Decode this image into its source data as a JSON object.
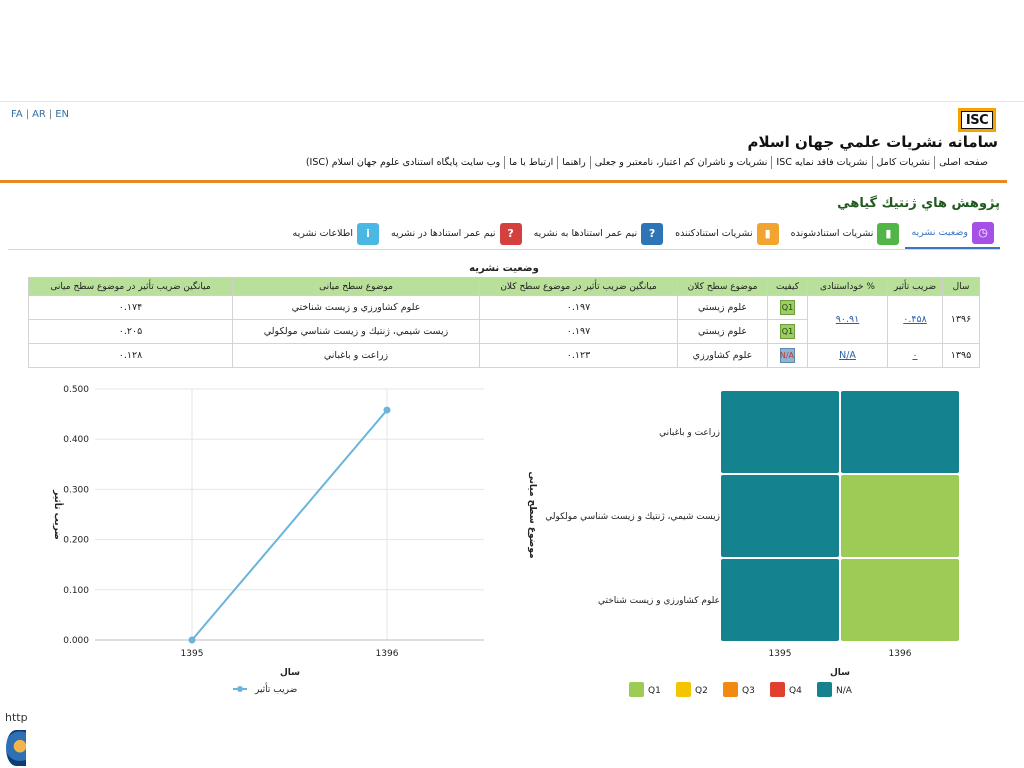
{
  "lang": [
    "FA",
    "AR",
    "EN"
  ],
  "logo": "ISC",
  "site_title": "سامانه نشريات علمي جهان اسلام",
  "nav": [
    "صفحه اصلی",
    "نشريات كامل",
    "نشريات فاقد نمايه ISC",
    "نشريات و ناشران كم اعتبار، نامعتبر و جعلی",
    "راهنما",
    "ارتباط با ما",
    "وب سايت پايگاه استنادی علوم جهان اسلام (ISC)"
  ],
  "journal_title": "پژوهش هاي ژنتيك گياهي",
  "tabs": [
    {
      "label": "وضعيت نشريه",
      "icon": "clock-icon",
      "color": "#a550e6",
      "active": true
    },
    {
      "label": "نشريات استنادشونده",
      "icon": "bar-chart-icon",
      "color": "#52b548"
    },
    {
      "label": "نشريات استنادكننده",
      "icon": "bar-chart-icon",
      "color": "#f2a431"
    },
    {
      "label": "نيم عمر استنادها به نشريه",
      "icon": "question-icon",
      "color": "#2d75b6"
    },
    {
      "label": "نيم عمر استنادها در نشريه",
      "icon": "question-icon",
      "color": "#d4403e"
    },
    {
      "label": "اطلاعات نشريه",
      "icon": "info-icon",
      "color": "#4bb7e3"
    }
  ],
  "table": {
    "caption": "وضعيت نشريه",
    "headers": [
      "سال",
      "ضريب تأثير",
      "% خوداستنادی",
      "كيفيت",
      "موضوع سطح كلان",
      "ميانگين ضريب تأثير در موضوع سطح كلان",
      "موضوع سطح ميانی",
      "ميانگين ضريب تأثير در موضوع سطح ميانی"
    ],
    "groups": [
      {
        "year": "۱۳۹۶",
        "impact": "۰.۴۵۸",
        "self_citation": "۹۰.۹۱",
        "rows": [
          {
            "quality": "Q1",
            "macro": "علوم زيستي",
            "macro_avg": "۰.۱۹۷",
            "meso": "علوم كشاورزي و زيست شناختي",
            "meso_avg": "۰.۱۷۴"
          },
          {
            "quality": "Q1",
            "macro": "علوم زيستي",
            "macro_avg": "۰.۱۹۷",
            "meso": "زيست شيمي، ژنتيك و زيست شناسي مولكولي",
            "meso_avg": "۰.۲۰۵"
          }
        ]
      },
      {
        "year": "۱۳۹۵",
        "impact": "۰",
        "self_citation": "N/A",
        "rows": [
          {
            "quality": "N/A",
            "macro": "علوم كشاورزي",
            "macro_avg": "۰.۱۲۳",
            "meso": "زراعت و باغباني",
            "meso_avg": "۰.۱۲۸"
          }
        ]
      }
    ]
  },
  "line_chart": {
    "type": "line",
    "x": [
      "1395",
      "1396"
    ],
    "series": [
      {
        "name": "ضريب تأثير",
        "values": [
          0,
          0.458
        ]
      }
    ],
    "xlabel": "سال",
    "ylabel": "ضريب تأثير",
    "ylim": [
      0,
      0.5
    ],
    "yticks": [
      "0.000",
      "0.100",
      "0.200",
      "0.300",
      "0.400",
      "0.500"
    ],
    "color": "#6cb4dc"
  },
  "heatmap": {
    "type": "heatmap",
    "x": [
      "1395",
      "1396"
    ],
    "y": [
      "زراعت و باغباني",
      "زيست شيمي، ژنتيك و زيست شناسي مولكولي",
      "علوم كشاورزي و زيست شناختي"
    ],
    "xlabel": "سال",
    "ylabel": "موضوع سطح ميانی",
    "cells": [
      [
        "N/A",
        "N/A"
      ],
      [
        "N/A",
        "Q1"
      ],
      [
        "N/A",
        "Q1"
      ]
    ],
    "legend": [
      {
        "label": "Q1",
        "color": "#9ccc55"
      },
      {
        "label": "Q2",
        "color": "#f5c400"
      },
      {
        "label": "Q3",
        "color": "#f28a12"
      },
      {
        "label": "Q4",
        "color": "#e0402e"
      },
      {
        "label": "N/A",
        "color": "#14838f"
      }
    ]
  },
  "status_text": "http"
}
